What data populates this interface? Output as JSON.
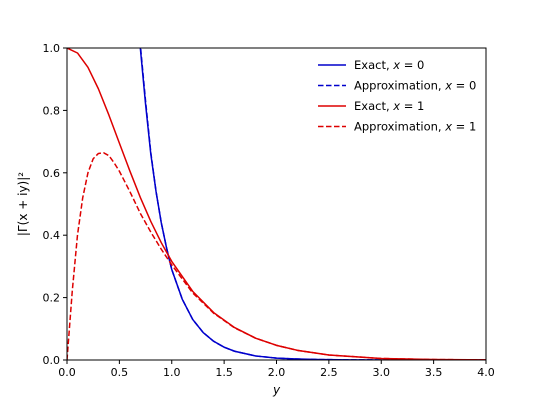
{
  "chart_data": {
    "type": "line",
    "title": "",
    "xlabel": "y",
    "ylabel": "|Γ(x + iy)|²",
    "xlim": [
      0.0,
      4.0
    ],
    "ylim": [
      0.0,
      1.0
    ],
    "xticks": [
      "0.0",
      "0.5",
      "1.0",
      "1.5",
      "2.0",
      "2.5",
      "3.0",
      "3.5",
      "4.0"
    ],
    "yticks": [
      "0.0",
      "0.2",
      "0.4",
      "0.6",
      "0.8",
      "1.0"
    ],
    "grid": false,
    "legend_position": "top-right",
    "series": [
      {
        "name": "Exact, x = 0",
        "legend_prefix": "Exact, ",
        "legend_var": "x",
        "legend_value": " = 0",
        "color": "#0000cc",
        "style": "solid",
        "x": [
          0.65,
          0.7,
          0.75,
          0.8,
          0.85,
          0.9,
          0.95,
          1.0,
          1.1,
          1.2,
          1.3,
          1.4,
          1.5,
          1.6,
          1.8,
          2.0,
          2.2,
          2.4,
          2.7,
          3.0,
          3.5,
          4.0
        ],
        "y": [
          1.15,
          1.0,
          0.82,
          0.66,
          0.54,
          0.44,
          0.36,
          0.29,
          0.195,
          0.13,
          0.088,
          0.06,
          0.041,
          0.028,
          0.013,
          0.006,
          0.003,
          0.0014,
          0.0005,
          0.0002,
          3e-05,
          0.0
        ]
      },
      {
        "name": "Approximation, x = 0",
        "legend_prefix": "Approximation, ",
        "legend_var": "x",
        "legend_value": " = 0",
        "color": "#0000cc",
        "style": "dashed",
        "x": [
          0.66,
          0.7,
          0.75,
          0.8,
          0.85,
          0.9,
          0.95,
          1.0,
          1.1,
          1.2,
          1.3,
          1.4,
          1.5,
          1.6,
          1.8,
          2.0,
          2.2,
          2.4,
          2.7,
          3.0,
          3.5,
          4.0
        ],
        "y": [
          1.15,
          1.01,
          0.83,
          0.665,
          0.54,
          0.44,
          0.36,
          0.29,
          0.195,
          0.13,
          0.088,
          0.06,
          0.041,
          0.028,
          0.013,
          0.006,
          0.003,
          0.0014,
          0.0005,
          0.0002,
          3e-05,
          0.0
        ]
      },
      {
        "name": "Exact, x = 1",
        "legend_prefix": "Exact, ",
        "legend_var": "x",
        "legend_value": " = 1",
        "color": "#dd0000",
        "style": "solid",
        "x": [
          0.0,
          0.1,
          0.2,
          0.3,
          0.4,
          0.5,
          0.6,
          0.7,
          0.8,
          0.9,
          1.0,
          1.2,
          1.4,
          1.6,
          1.8,
          2.0,
          2.2,
          2.5,
          3.0,
          3.5,
          4.0
        ],
        "y": [
          1.0,
          0.984,
          0.938,
          0.869,
          0.785,
          0.695,
          0.606,
          0.521,
          0.444,
          0.376,
          0.316,
          0.22,
          0.152,
          0.104,
          0.07,
          0.047,
          0.031,
          0.016,
          0.0049,
          0.0014,
          0.0004
        ]
      },
      {
        "name": "Approximation, x = 1",
        "legend_prefix": "Approximation, ",
        "legend_var": "x",
        "legend_value": " = 1",
        "color": "#dd0000",
        "style": "dashed",
        "x": [
          0.0,
          0.025,
          0.05,
          0.1,
          0.15,
          0.2,
          0.25,
          0.3,
          0.35,
          0.4,
          0.45,
          0.5,
          0.6,
          0.7,
          0.8,
          0.9,
          1.0,
          1.2,
          1.4,
          1.6,
          1.8,
          2.0,
          2.2,
          2.5,
          3.0,
          3.5,
          4.0
        ],
        "y": [
          0.0,
          0.11,
          0.22,
          0.4,
          0.52,
          0.6,
          0.645,
          0.662,
          0.664,
          0.655,
          0.632,
          0.605,
          0.54,
          0.47,
          0.41,
          0.355,
          0.305,
          0.215,
          0.15,
          0.103,
          0.07,
          0.047,
          0.031,
          0.016,
          0.0049,
          0.0014,
          0.0004
        ]
      }
    ]
  }
}
